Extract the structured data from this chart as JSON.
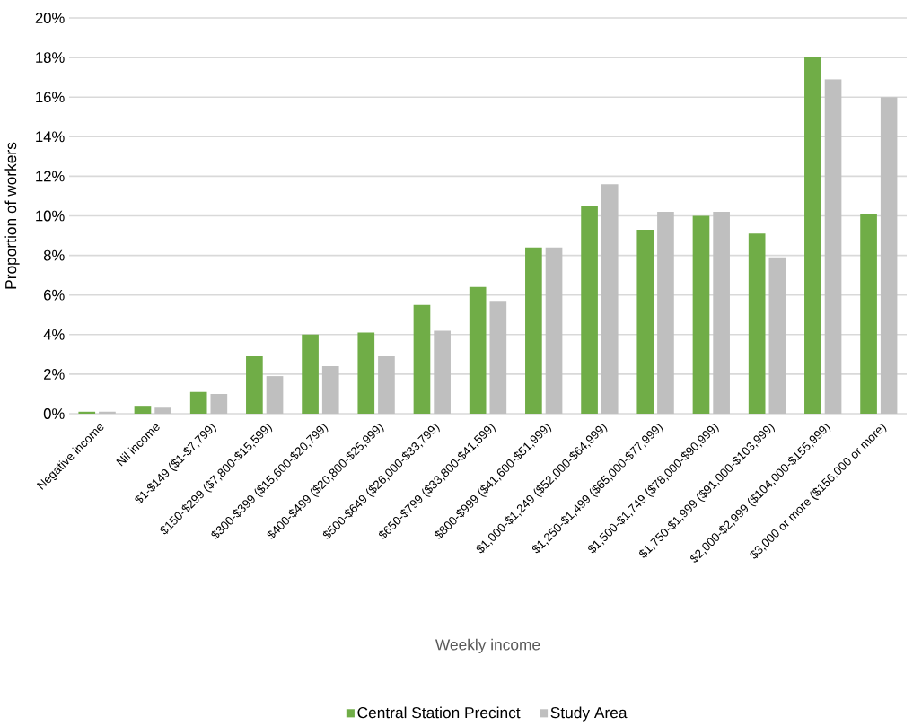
{
  "chart_data": {
    "type": "bar",
    "xlabel": "Weekly income",
    "ylabel": "Proportion of workers",
    "categories": [
      "Negative income",
      "Nil income",
      "$1-$149 ($1-$7,799)",
      "$150-$299 ($7,800-$15,599)",
      "$300-$399 ($15,600-$20,799)",
      "$400-$499 ($20,800-$25,999)",
      "$500-$649 ($26,000-$33,799)",
      "$650-$799 ($33,800-$41,599)",
      "$800-$999 ($41,600-$51,999)",
      "$1,000-$1,249 ($52,000-$64,999)",
      "$1,250-$1,499 ($65,000-$77,999)",
      "$1,500-$1,749 ($78,000-$90,999)",
      "$1,750-$1,999 ($91,000-$103,999)",
      "$2,000-$2,999 ($104,000-$155,999)",
      "$3,000 or more ($156,000 or more)"
    ],
    "series": [
      {
        "name": "Central Station Precinct",
        "color": "#70ad47",
        "values": [
          0.1,
          0.4,
          1.1,
          2.9,
          4.0,
          4.1,
          5.5,
          6.4,
          8.4,
          10.5,
          9.3,
          10.0,
          9.1,
          18.0,
          10.1
        ]
      },
      {
        "name": "Study Area",
        "color": "#bfbfbf",
        "values": [
          0.1,
          0.3,
          1.0,
          1.9,
          2.4,
          2.9,
          4.2,
          5.7,
          8.4,
          11.6,
          10.2,
          10.2,
          7.9,
          16.9,
          16.0
        ]
      }
    ],
    "ylim": [
      0,
      20
    ],
    "yticks": [
      {
        "value": 0,
        "label": "0%"
      },
      {
        "value": 2,
        "label": "2%"
      },
      {
        "value": 4,
        "label": "4%"
      },
      {
        "value": 6,
        "label": "6%"
      },
      {
        "value": 8,
        "label": "8%"
      },
      {
        "value": 10,
        "label": "10%"
      },
      {
        "value": 12,
        "label": "12%"
      },
      {
        "value": 14,
        "label": "14%"
      },
      {
        "value": 16,
        "label": "16%"
      },
      {
        "value": 18,
        "label": "18%"
      },
      {
        "value": 20,
        "label": "20%"
      }
    ],
    "grid": "y",
    "legend": "bottom"
  }
}
